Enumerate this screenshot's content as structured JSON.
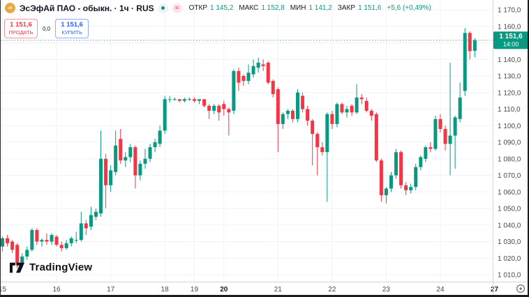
{
  "header": {
    "logo_text": "sfi",
    "title": "ЭсЭфАй ПАО - обыкн. · 1ч · RUS",
    "market_status_icon": "market-open-dot",
    "delayed_data_icon": "approx-equals",
    "ohlc": [
      {
        "label": "ОТКР",
        "value": "1 145,2"
      },
      {
        "label": "МАКС",
        "value": "1 152,8"
      },
      {
        "label": "МИН",
        "value": "1 141,2"
      },
      {
        "label": "ЗАКР",
        "value": "1 151,6"
      }
    ],
    "change": "+5,6 (+0,49%)"
  },
  "trade_panel": {
    "sell": {
      "price": "1 151,6",
      "label": "ПРОДАТЬ"
    },
    "spread": "0,0",
    "buy": {
      "price": "1 151,6",
      "label": "КУПИТЬ"
    }
  },
  "watermark": "TradingView",
  "price_scale": {
    "ticks": [
      1010,
      1020,
      1030,
      1040,
      1050,
      1060,
      1070,
      1080,
      1090,
      1100,
      1110,
      1120,
      1130,
      1140,
      1150,
      1160,
      1170
    ],
    "last": {
      "price": 1151.6,
      "price_label": "1 151,6",
      "time": "14:00"
    }
  },
  "colors": {
    "up": "#089981",
    "down": "#f23645",
    "buy_accent": "#2962ff",
    "sell_accent": "#f23645",
    "grid": "#f0f3fa",
    "axis_border": "#d1d4dc",
    "axis_text": "#434651",
    "axis_text_bold": "#131722",
    "badge_bg": "#089981",
    "badge_text": "#ffffff"
  },
  "chart_data": {
    "type": "candlestick",
    "title": "ЭсЭфАй ПАО - обыкн.",
    "interval": "1ч",
    "exchange": "RUS",
    "ylim": [
      1005,
      1175
    ],
    "grid": true,
    "current_price": 1151.6,
    "current_bar_time": "14:00",
    "days": [
      {
        "label": "15",
        "bold": false,
        "candles": [
          [
            1027,
            1033,
            1024,
            1032
          ],
          [
            1032,
            1034,
            1027,
            1029
          ],
          [
            1030,
            1031,
            1023,
            1025
          ],
          [
            1028,
            1029,
            1014,
            1017
          ],
          [
            1017,
            1023,
            1015,
            1021
          ],
          [
            1021,
            1027,
            1019,
            1025
          ],
          [
            1025,
            1038,
            1024,
            1037
          ],
          [
            1037,
            1038,
            1028,
            1030
          ],
          [
            1030,
            1032,
            1027,
            1031
          ],
          [
            1031,
            1035,
            1028,
            1030
          ],
          [
            1030,
            1035,
            1028,
            1034
          ]
        ]
      },
      {
        "label": "16",
        "bold": false,
        "candles": [
          [
            1033,
            1034,
            1027,
            1028
          ],
          [
            1028,
            1030,
            1024,
            1026
          ],
          [
            1026,
            1031,
            1025,
            1029
          ],
          [
            1029,
            1033,
            1027,
            1032
          ],
          [
            1031,
            1036,
            1029,
            1031
          ],
          [
            1031,
            1048,
            1030,
            1041
          ],
          [
            1041,
            1043,
            1034,
            1038
          ],
          [
            1039,
            1051,
            1037,
            1046
          ],
          [
            1045,
            1050,
            1043,
            1048
          ],
          [
            1047,
            1097,
            1045,
            1080
          ],
          [
            1080,
            1083,
            1050,
            1064
          ]
        ]
      },
      {
        "label": "17",
        "bold": false,
        "candles": [
          [
            1064,
            1076,
            1060,
            1073
          ],
          [
            1072,
            1097,
            1070,
            1088
          ],
          [
            1092,
            1098,
            1077,
            1079
          ],
          [
            1079,
            1084,
            1075,
            1081
          ],
          [
            1081,
            1089,
            1078,
            1087
          ],
          [
            1087,
            1088,
            1062,
            1070
          ],
          [
            1070,
            1079,
            1067,
            1077
          ],
          [
            1077,
            1086,
            1074,
            1080
          ],
          [
            1080,
            1089,
            1078,
            1087
          ],
          [
            1087,
            1092,
            1084,
            1090
          ],
          [
            1089,
            1100,
            1087,
            1097
          ]
        ]
      },
      {
        "label": "18",
        "bold": false,
        "candles": [
          [
            1097,
            1118,
            1095,
            1116
          ],
          [
            1116,
            1118,
            1114,
            1116
          ],
          [
            1116,
            1117,
            1115,
            1116
          ],
          [
            1116,
            1116,
            1114,
            1115
          ],
          [
            1115,
            1117,
            1114,
            1116
          ],
          [
            1116,
            1117,
            1115,
            1116
          ]
        ]
      },
      {
        "label": "19",
        "bold": false,
        "candles": [
          [
            1116,
            1117,
            1114,
            1115
          ],
          [
            1115,
            1116,
            1113,
            1116
          ],
          [
            1116,
            1116,
            1111,
            1112
          ],
          [
            1112,
            1113,
            1104,
            1109
          ],
          [
            1109,
            1113,
            1107,
            1112
          ],
          [
            1112,
            1113,
            1103,
            1108
          ]
        ]
      },
      {
        "label": "20",
        "bold": true,
        "candles": [
          [
            1113,
            1115,
            1106,
            1110
          ],
          [
            1110,
            1111,
            1094,
            1108
          ],
          [
            1109,
            1134,
            1107,
            1133
          ],
          [
            1133,
            1135,
            1121,
            1126
          ],
          [
            1130,
            1131,
            1124,
            1127
          ],
          [
            1127,
            1137,
            1125,
            1132
          ],
          [
            1131,
            1140,
            1129,
            1136
          ],
          [
            1135,
            1141,
            1132,
            1138
          ],
          [
            1137,
            1140,
            1133,
            1136
          ],
          [
            1138,
            1139,
            1125,
            1126
          ],
          [
            1127,
            1128,
            1117,
            1119
          ]
        ]
      },
      {
        "label": "21",
        "bold": false,
        "candles": [
          [
            1122,
            1123,
            1084,
            1101
          ],
          [
            1101,
            1108,
            1098,
            1107
          ],
          [
            1107,
            1110,
            1104,
            1109
          ],
          [
            1109,
            1110,
            1102,
            1104
          ],
          [
            1104,
            1122,
            1102,
            1120
          ],
          [
            1118,
            1120,
            1108,
            1110
          ],
          [
            1110,
            1112,
            1100,
            1103
          ],
          [
            1103,
            1104,
            1076,
            1095
          ],
          [
            1095,
            1096,
            1070,
            1087
          ],
          [
            1087,
            1090,
            1082,
            1084
          ],
          [
            1084,
            1108,
            1054,
            1107
          ]
        ]
      },
      {
        "label": "22",
        "bold": false,
        "candles": [
          [
            1107,
            1109,
            1098,
            1101
          ],
          [
            1101,
            1114,
            1099,
            1113
          ],
          [
            1113,
            1114,
            1107,
            1108
          ],
          [
            1108,
            1112,
            1105,
            1110
          ],
          [
            1112,
            1113,
            1106,
            1108
          ],
          [
            1108,
            1125,
            1107,
            1117
          ],
          [
            1117,
            1119,
            1113,
            1116
          ],
          [
            1115,
            1117,
            1108,
            1109
          ],
          [
            1109,
            1110,
            1103,
            1106
          ],
          [
            1107,
            1108,
            1078,
            1079
          ],
          [
            1079,
            1080,
            1054,
            1058
          ]
        ]
      },
      {
        "label": "23",
        "bold": false,
        "candles": [
          [
            1058,
            1063,
            1053,
            1062
          ],
          [
            1062,
            1072,
            1060,
            1070
          ],
          [
            1070,
            1086,
            1068,
            1084
          ],
          [
            1084,
            1085,
            1062,
            1064
          ],
          [
            1064,
            1066,
            1058,
            1061
          ],
          [
            1061,
            1065,
            1059,
            1063
          ],
          [
            1063,
            1077,
            1061,
            1075
          ],
          [
            1075,
            1082,
            1073,
            1081
          ],
          [
            1080,
            1088,
            1078,
            1087
          ],
          [
            1087,
            1090,
            1084,
            1086
          ],
          [
            1086,
            1106,
            1085,
            1104
          ]
        ]
      },
      {
        "label": "24",
        "bold": false,
        "slots": 11,
        "candles": [
          [
            1104,
            1107,
            1096,
            1098
          ],
          [
            1098,
            1100,
            1085,
            1089
          ],
          [
            1089,
            1138,
            1070,
            1094
          ],
          [
            1094,
            1106,
            1074,
            1105
          ],
          [
            1104,
            1126,
            1102,
            1117
          ],
          [
            1121,
            1159,
            1118,
            1156
          ],
          [
            1156,
            1157,
            1140,
            1145
          ],
          [
            1145.2,
            1152.8,
            1141.2,
            1151.6
          ]
        ]
      },
      {
        "label": "27",
        "bold": true,
        "slots": 0,
        "candles": []
      }
    ]
  }
}
